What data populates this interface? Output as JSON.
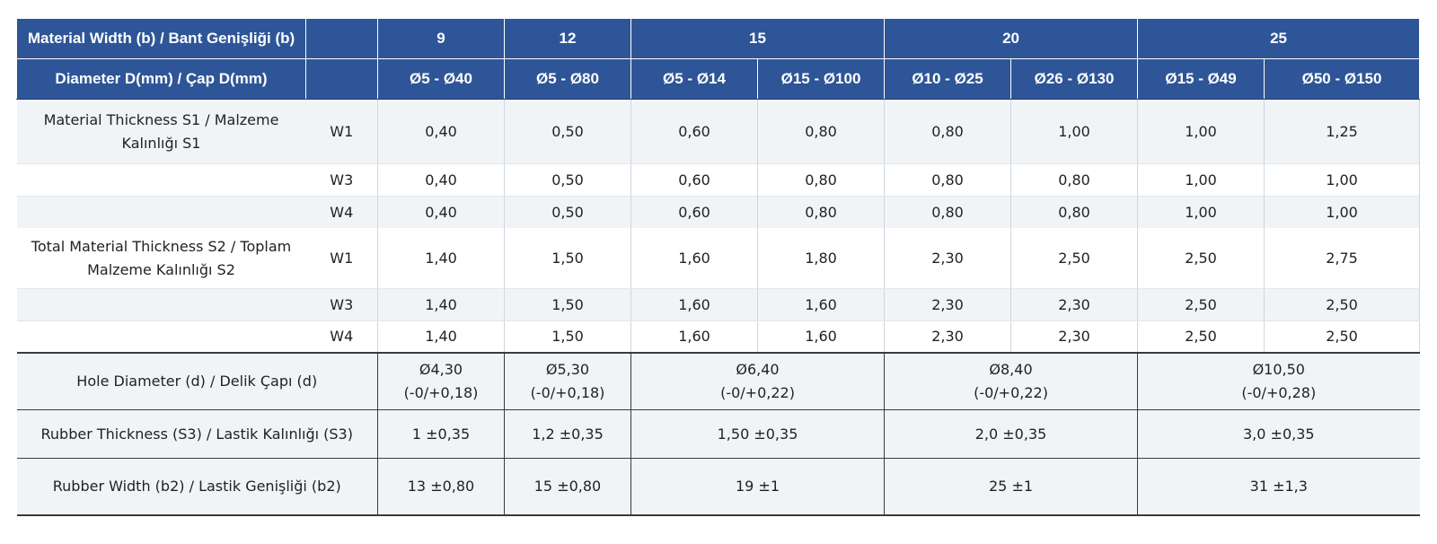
{
  "header": {
    "width_label": "Material Width (b) / Bant Genişliği (b)",
    "diameter_label": "Diameter D(mm) / Çap D(mm)",
    "widths": [
      "9",
      "12",
      "15",
      "20",
      "25"
    ],
    "diameters": [
      "Ø5 - Ø40",
      "Ø5 - Ø80",
      "Ø5 - Ø14",
      "Ø15 - Ø100",
      "Ø10 - Ø25",
      "Ø26 - Ø130",
      "Ø15 - Ø49",
      "Ø50 - Ø150"
    ]
  },
  "s1": {
    "label": "Material Thickness S1 / Malzeme Kalınlığı S1",
    "rows": [
      {
        "w": "W1",
        "values": [
          "0,40",
          "0,50",
          "0,60",
          "0,80",
          "0,80",
          "1,00",
          "1,00",
          "1,25"
        ]
      },
      {
        "w": "W3",
        "values": [
          "0,40",
          "0,50",
          "0,60",
          "0,80",
          "0,80",
          "0,80",
          "1,00",
          "1,00"
        ]
      },
      {
        "w": "W4",
        "values": [
          "0,40",
          "0,50",
          "0,60",
          "0,80",
          "0,80",
          "0,80",
          "1,00",
          "1,00"
        ]
      }
    ]
  },
  "s2": {
    "label": "Total Material Thickness S2 / Toplam Malzeme Kalınlığı S2",
    "rows": [
      {
        "w": "W1",
        "values": [
          "1,40",
          "1,50",
          "1,60",
          "1,80",
          "2,30",
          "2,50",
          "2,50",
          "2,75"
        ]
      },
      {
        "w": "W3",
        "values": [
          "1,40",
          "1,50",
          "1,60",
          "1,60",
          "2,30",
          "2,30",
          "2,50",
          "2,50"
        ]
      },
      {
        "w": "W4",
        "values": [
          "1,40",
          "1,50",
          "1,60",
          "1,60",
          "2,30",
          "2,30",
          "2,50",
          "2,50"
        ]
      }
    ]
  },
  "hole": {
    "label": "Hole Diameter (d) / Delik Çapı (d)",
    "values": [
      {
        "d": "Ø4,30",
        "tol": "(-0/+0,18)"
      },
      {
        "d": "Ø5,30",
        "tol": "(-0/+0,18)"
      },
      {
        "d": "Ø6,40",
        "tol": "(-0/+0,22)"
      },
      {
        "d": "Ø8,40",
        "tol": "(-0/+0,22)"
      },
      {
        "d": "Ø10,50",
        "tol": "(-0/+0,28)"
      }
    ]
  },
  "rubber_thickness": {
    "label": "Rubber Thickness (S3) / Lastik Kalınlığı (S3)",
    "values": [
      "1 ±0,35",
      "1,2 ±0,35",
      "1,50 ±0,35",
      "2,0 ±0,35",
      "3,0 ±0,35"
    ]
  },
  "rubber_width": {
    "label": "Rubber Width (b2) / Lastik Genişliği (b2)",
    "values": [
      "13 ±0,80",
      "15 ±0,80",
      "19 ±1",
      "25 ±1",
      "31 ±1,3"
    ]
  }
}
